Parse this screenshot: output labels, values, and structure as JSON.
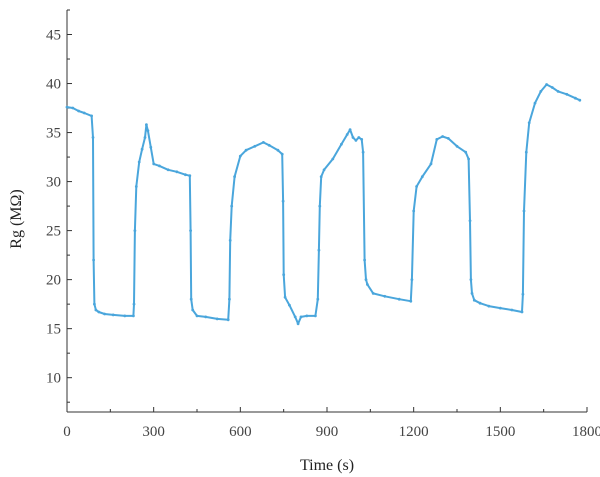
{
  "chart_data": {
    "type": "line",
    "title": "",
    "xlabel": "Time (s)",
    "ylabel": "Rg (MΩ)",
    "xlim": [
      0,
      1800
    ],
    "ylim": [
      6.5,
      47.5
    ],
    "xticks": [
      0,
      300,
      600,
      900,
      1200,
      1500,
      1800
    ],
    "xtick_labels": [
      "0",
      "300",
      "600",
      "900",
      "1200",
      "1500",
      "1800"
    ],
    "yticks": [
      10,
      15,
      20,
      25,
      30,
      35,
      40,
      45
    ],
    "ytick_labels": [
      "10",
      "15",
      "20",
      "25",
      "30",
      "35",
      "40",
      "45"
    ],
    "grid": false,
    "legend": "none",
    "color": "#4aa6dc",
    "series": [
      {
        "name": "",
        "x": [
          0,
          20,
          40,
          60,
          85,
          90,
          92,
          95,
          100,
          110,
          130,
          160,
          200,
          230,
          232,
          235,
          240,
          250,
          260,
          270,
          275,
          280,
          290,
          300,
          320,
          350,
          380,
          410,
          425,
          428,
          430,
          435,
          450,
          480,
          520,
          558,
          562,
          565,
          570,
          580,
          600,
          620,
          650,
          680,
          700,
          730,
          745,
          748,
          750,
          755,
          770,
          790,
          800,
          810,
          830,
          860,
          868,
          872,
          875,
          880,
          890,
          920,
          950,
          970,
          980,
          990,
          1000,
          1010,
          1020,
          1025,
          1030,
          1035,
          1040,
          1060,
          1100,
          1150,
          1190,
          1194,
          1200,
          1210,
          1230,
          1260,
          1280,
          1300,
          1320,
          1350,
          1380,
          1390,
          1395,
          1398,
          1402,
          1410,
          1430,
          1460,
          1500,
          1540,
          1575,
          1578,
          1582,
          1590,
          1600,
          1620,
          1640,
          1660,
          1680,
          1700,
          1730,
          1760,
          1775
        ],
        "y": [
          37.6,
          37.5,
          37.2,
          37.0,
          36.7,
          34.5,
          22.0,
          17.5,
          16.9,
          16.7,
          16.5,
          16.4,
          16.3,
          16.3,
          17.5,
          25.0,
          29.5,
          32.0,
          33.3,
          34.5,
          35.8,
          35.2,
          33.5,
          31.8,
          31.6,
          31.2,
          31.0,
          30.7,
          30.6,
          25.0,
          18.0,
          16.9,
          16.3,
          16.2,
          16.0,
          15.9,
          18.0,
          24.0,
          27.5,
          30.5,
          32.6,
          33.2,
          33.6,
          34.0,
          33.7,
          33.2,
          32.8,
          28.0,
          20.5,
          18.2,
          17.4,
          16.2,
          15.5,
          16.2,
          16.3,
          16.3,
          18.0,
          23.0,
          27.5,
          30.5,
          31.2,
          32.3,
          33.8,
          34.8,
          35.3,
          34.5,
          34.2,
          34.5,
          34.3,
          33.0,
          22.0,
          20.0,
          19.5,
          18.6,
          18.3,
          18.0,
          17.8,
          20.0,
          27.0,
          29.5,
          30.5,
          31.8,
          34.3,
          34.6,
          34.4,
          33.6,
          33.0,
          32.3,
          26.0,
          20.0,
          18.6,
          17.9,
          17.6,
          17.3,
          17.1,
          16.9,
          16.7,
          18.5,
          27.0,
          33.0,
          36.0,
          38.0,
          39.2,
          39.9,
          39.6,
          39.2,
          38.9,
          38.5,
          38.3
        ]
      }
    ]
  }
}
